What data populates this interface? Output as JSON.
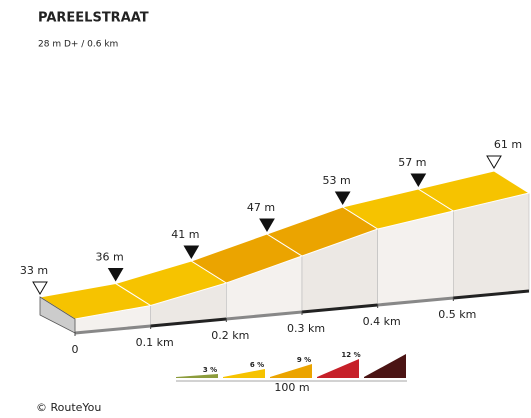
{
  "chart_data": {
    "type": "profile",
    "title": "PAREELSTRAAT",
    "subtitle": "28 m D+ / 0.6 km",
    "x": [
      0,
      0.1,
      0.2,
      0.3,
      0.4,
      0.5,
      0.6
    ],
    "values": [
      33,
      36,
      41,
      47,
      53,
      57,
      61
    ],
    "value_labels": [
      "33 m",
      "36 m",
      "41 m",
      "47 m",
      "53 m",
      "57 m",
      "61 m"
    ],
    "xlim": [
      0,
      0.6
    ],
    "ylim": [
      33,
      61
    ],
    "xticks": [
      0,
      {
        "value": 0.1,
        "label": "0.1 km"
      },
      {
        "value": 0.2,
        "label": "0.2 km"
      },
      {
        "value": 0.3,
        "label": "0.3 km"
      },
      {
        "value": 0.4,
        "label": "0.4 km"
      },
      {
        "value": 0.5,
        "label": "0.5 km"
      }
    ],
    "segment_colors": [
      "#f6c300",
      "#f6c300",
      "#eba400",
      "#eba400",
      "#f6c300",
      "#f6c300"
    ],
    "legend": [
      {
        "label": "3 %",
        "color": "#8c9c3c"
      },
      {
        "label": "6 %",
        "color": "#f6c300"
      },
      {
        "label": "9 %",
        "color": "#eba400"
      },
      {
        "label": "12 %",
        "color": "#c62029"
      },
      {
        "color": "#4b1414"
      }
    ],
    "scale_label": "100 m",
    "credit": "© RouteYou"
  }
}
